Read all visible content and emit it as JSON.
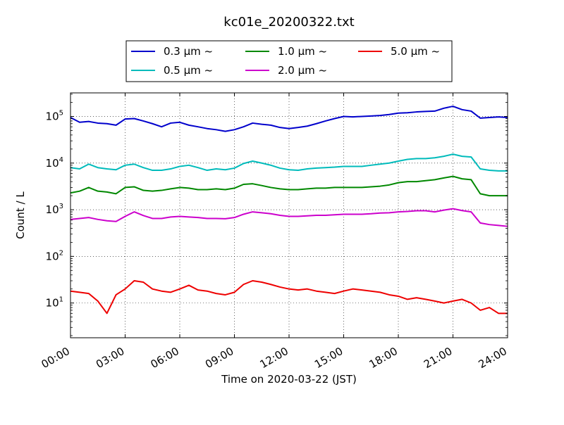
{
  "chart_data": {
    "type": "line",
    "title": "kc01e_20200322.txt",
    "xlabel": "Time on 2020-03-22 (JST)",
    "ylabel": "Count / L",
    "yscale": "log",
    "xlim": [
      "00:00",
      "24:00"
    ],
    "ylim": [
      1.8,
      320000
    ],
    "grid": true,
    "legend_position": "top-center-outside",
    "x_tick_labels": [
      "00:00",
      "03:00",
      "06:00",
      "09:00",
      "12:00",
      "15:00",
      "18:00",
      "21:00",
      "24:00"
    ],
    "y_tick_labels": [
      {
        "base": "10",
        "exp": "1",
        "value": 10
      },
      {
        "base": "10",
        "exp": "2",
        "value": 100
      },
      {
        "base": "10",
        "exp": "3",
        "value": 1000
      },
      {
        "base": "10",
        "exp": "4",
        "value": 10000
      },
      {
        "base": "10",
        "exp": "5",
        "value": 100000
      }
    ],
    "x": [
      "00:00",
      "00:30",
      "01:00",
      "01:30",
      "02:00",
      "02:30",
      "03:00",
      "03:30",
      "04:00",
      "04:30",
      "05:00",
      "05:30",
      "06:00",
      "06:30",
      "07:00",
      "07:30",
      "08:00",
      "08:30",
      "09:00",
      "09:30",
      "10:00",
      "10:30",
      "11:00",
      "11:30",
      "12:00",
      "12:30",
      "13:00",
      "13:30",
      "14:00",
      "14:30",
      "15:00",
      "15:30",
      "16:00",
      "16:30",
      "17:00",
      "17:30",
      "18:00",
      "18:30",
      "19:00",
      "19:30",
      "20:00",
      "20:30",
      "21:00",
      "21:30",
      "22:00",
      "22:30",
      "23:00",
      "23:30",
      "24:00"
    ],
    "series": [
      {
        "name": "0.3 μm ~",
        "color": "#0000cc",
        "values": [
          95000,
          75000,
          78000,
          72000,
          70000,
          65000,
          88000,
          90000,
          80000,
          70000,
          60000,
          72000,
          75000,
          65000,
          60000,
          55000,
          52000,
          48000,
          52000,
          60000,
          72000,
          68000,
          65000,
          58000,
          55000,
          58000,
          62000,
          70000,
          80000,
          90000,
          100000,
          98000,
          100000,
          102000,
          105000,
          110000,
          118000,
          120000,
          125000,
          128000,
          130000,
          150000,
          165000,
          140000,
          130000,
          92000,
          95000,
          98000,
          95000
        ]
      },
      {
        "name": "0.5 μm ~",
        "color": "#00bbbb",
        "values": [
          8000,
          7500,
          9500,
          8000,
          7500,
          7200,
          9000,
          9500,
          8000,
          7000,
          7000,
          7500,
          8500,
          9000,
          8000,
          7000,
          7500,
          7200,
          7800,
          9800,
          11000,
          10000,
          9000,
          7800,
          7200,
          7000,
          7500,
          7800,
          8000,
          8200,
          8500,
          8500,
          8500,
          9000,
          9500,
          10000,
          11000,
          12000,
          12500,
          12500,
          13000,
          14000,
          15500,
          14000,
          13500,
          7500,
          7000,
          6800,
          6800
        ]
      },
      {
        "name": "1.0 μm ~",
        "color": "#008800",
        "values": [
          2300,
          2500,
          3000,
          2500,
          2400,
          2200,
          3000,
          3100,
          2600,
          2500,
          2600,
          2800,
          3000,
          2900,
          2700,
          2700,
          2800,
          2700,
          2900,
          3500,
          3600,
          3300,
          3000,
          2800,
          2700,
          2700,
          2800,
          2900,
          2900,
          3000,
          3000,
          3000,
          3000,
          3100,
          3200,
          3400,
          3800,
          4000,
          4000,
          4200,
          4400,
          4800,
          5200,
          4600,
          4400,
          2200,
          2000,
          2000,
          2000
        ]
      },
      {
        "name": "2.0 μm ~",
        "color": "#cc00cc",
        "values": [
          620,
          650,
          680,
          620,
          580,
          560,
          720,
          900,
          750,
          650,
          650,
          700,
          720,
          700,
          680,
          650,
          650,
          640,
          680,
          800,
          900,
          860,
          820,
          760,
          720,
          720,
          740,
          760,
          760,
          780,
          800,
          800,
          800,
          820,
          850,
          860,
          900,
          920,
          950,
          950,
          900,
          980,
          1050,
          960,
          900,
          520,
          480,
          460,
          440
        ]
      },
      {
        "name": "5.0 μm ~",
        "color": "#ee0000",
        "values": [
          18,
          17,
          16,
          11,
          6,
          15,
          20,
          30,
          28,
          20,
          18,
          17,
          20,
          24,
          19,
          18,
          16,
          15,
          17,
          25,
          30,
          28,
          25,
          22,
          20,
          19,
          20,
          18,
          17,
          16,
          18,
          20,
          19,
          18,
          17,
          15,
          14,
          12,
          13,
          12,
          11,
          10,
          11,
          12,
          10,
          7,
          8,
          6,
          6
        ]
      }
    ]
  }
}
